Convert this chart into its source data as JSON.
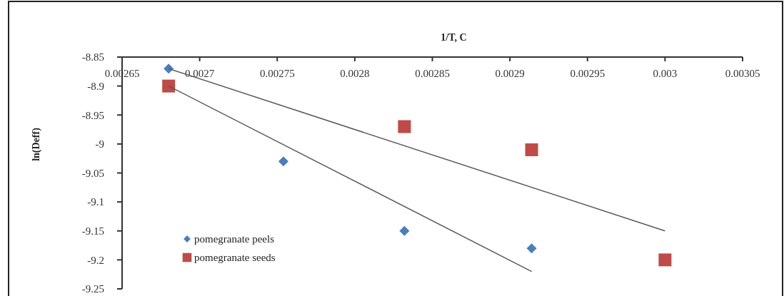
{
  "chart_data": {
    "type": "scatter",
    "xlabel": "1/T, C",
    "ylabel": "ln(Deff)",
    "xlim": [
      0.00265,
      0.00305
    ],
    "ylim": [
      -9.25,
      -8.85
    ],
    "xticks": [
      0.00265,
      0.0027,
      0.00275,
      0.0028,
      0.00285,
      0.0029,
      0.00295,
      0.003,
      0.00305
    ],
    "yticks": [
      -8.85,
      -8.9,
      -8.95,
      -9,
      -9.05,
      -9.1,
      -9.15,
      -9.2,
      -9.25
    ],
    "grid": false,
    "legend": "bottom left",
    "series": [
      {
        "name": "pomegranate peels",
        "color": "#4a7ebb",
        "marker": "diamond",
        "x": [
          0.00268,
          0.002754,
          0.002832,
          0.002914
        ],
        "values": [
          -8.87,
          -9.03,
          -9.15,
          -9.18
        ]
      },
      {
        "name": "pomegranate seeds",
        "color": "#be4b48",
        "marker": "square",
        "x": [
          0.00268,
          0.002832,
          0.002914,
          0.003
        ],
        "values": [
          -8.9,
          -8.97,
          -9.01,
          -9.2
        ]
      },
      {
        "type": "line",
        "color": "#595959",
        "marker": "none",
        "x": [
          0.00268,
          0.003
        ],
        "values": [
          -8.87,
          -9.15
        ]
      },
      {
        "type": "line",
        "color": "#595959",
        "marker": "none",
        "x": [
          0.00268,
          0.002914
        ],
        "values": [
          -8.9,
          -9.22
        ]
      }
    ]
  }
}
